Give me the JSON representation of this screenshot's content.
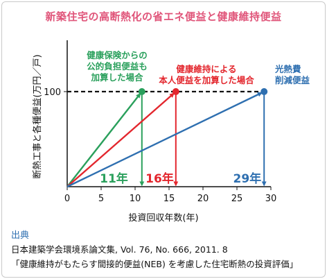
{
  "chart_data": {
    "type": "line",
    "title": "新築住宅の高断熱化の省エネ便益と健康維持便益",
    "xlabel": "投資回収年数(年)",
    "ylabel": "断熱工事と各種便益(万円／戸)",
    "xlim": [
      0,
      30
    ],
    "x_ticks": [
      "0",
      "5",
      "10",
      "15",
      "20",
      "25",
      "30"
    ],
    "y_ticks": [
      "100"
    ],
    "reference_line": {
      "y": 100,
      "style": "dashed"
    },
    "series": [
      {
        "name": "健康保険からの公的負担便益も加算した場合",
        "color": "#2aa05c",
        "x": [
          0,
          11
        ],
        "y": [
          0,
          100
        ],
        "payback_label": "11年"
      },
      {
        "name": "健康維持による本人便益を加算した場合",
        "color": "#e3262d",
        "x": [
          0,
          16
        ],
        "y": [
          0,
          100
        ],
        "payback_label": "16年"
      },
      {
        "name": "光熱費削減便益",
        "color": "#2e6fb0",
        "x": [
          0,
          29
        ],
        "y": [
          0,
          100
        ],
        "payback_label": "29年"
      }
    ],
    "annotations": [
      {
        "lines": [
          "健康保険からの",
          "公的負担便益も",
          "加算した場合"
        ],
        "color": "#2aa05c"
      },
      {
        "lines": [
          "健康維持による",
          "本人便益を加算した場合"
        ],
        "color": "#e3262d"
      },
      {
        "lines": [
          "光熱費",
          "削減便益"
        ],
        "color": "#2e6fb0"
      }
    ]
  },
  "source": {
    "heading": "出典",
    "line1": "日本建築学会環境系論文集, Vol. 76, No. 666, 2011. 8",
    "line2": "「健康維持がもたらす間接的便益(NEB) を考慮した住宅断熱の投資評価」"
  }
}
